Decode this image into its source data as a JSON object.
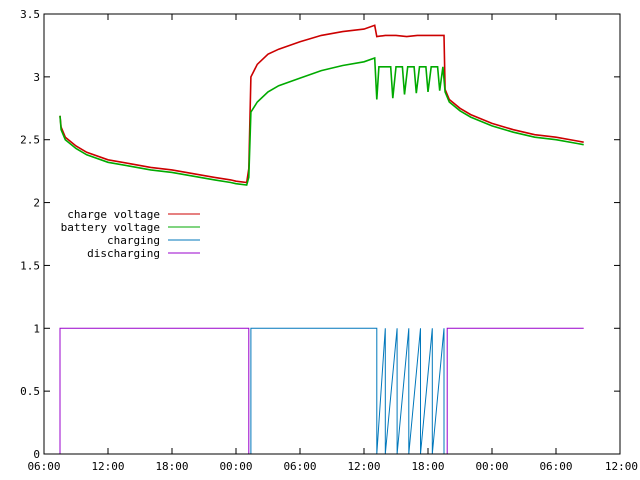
{
  "chart_data": {
    "type": "line",
    "title": "",
    "xlabel": "",
    "ylabel": "",
    "x_unit": "hours since first 06:00 tick",
    "xlim": [
      0,
      54
    ],
    "ylim": [
      0,
      3.5
    ],
    "grid": false,
    "legend_position": "left",
    "x_tick_labels": [
      "06:00",
      "12:00",
      "18:00",
      "00:00",
      "06:00",
      "12:00",
      "18:00",
      "00:00",
      "06:00",
      "12:00"
    ],
    "x_tick_values": [
      0,
      6,
      12,
      18,
      24,
      30,
      36,
      42,
      48,
      54
    ],
    "y_tick_labels": [
      "0",
      "0.5",
      "1",
      "1.5",
      "2",
      "2.5",
      "3",
      "3.5"
    ],
    "y_tick_values": [
      0,
      0.5,
      1,
      1.5,
      2,
      2.5,
      3,
      3.5
    ],
    "series": [
      {
        "name": "charge voltage",
        "color": "#cc0000",
        "x": [
          1.5,
          1.6,
          2.0,
          3.0,
          4.0,
          6.0,
          8.0,
          10.0,
          12.0,
          14.0,
          16.0,
          17.5,
          18.0,
          19.0,
          19.2,
          19.4,
          20.0,
          21.0,
          22.0,
          24.0,
          26.0,
          28.0,
          30.0,
          31.0,
          31.2,
          32.0,
          33.0,
          34.0,
          35.0,
          36.0,
          37.0,
          37.5,
          37.6,
          38.0,
          39.0,
          40.0,
          42.0,
          44.0,
          46.0,
          48.0,
          50.0,
          50.6
        ],
        "values": [
          2.69,
          2.6,
          2.52,
          2.45,
          2.4,
          2.34,
          2.31,
          2.28,
          2.26,
          2.23,
          2.2,
          2.18,
          2.17,
          2.16,
          2.27,
          3.0,
          3.1,
          3.18,
          3.22,
          3.28,
          3.33,
          3.36,
          3.38,
          3.41,
          3.32,
          3.33,
          3.33,
          3.32,
          3.33,
          3.33,
          3.33,
          3.33,
          2.9,
          2.82,
          2.75,
          2.7,
          2.63,
          2.58,
          2.54,
          2.52,
          2.49,
          2.48
        ]
      },
      {
        "name": "battery voltage",
        "color": "#00aa00",
        "x": [
          1.5,
          1.6,
          2.0,
          3.0,
          4.0,
          6.0,
          8.0,
          10.0,
          12.0,
          14.0,
          16.0,
          17.5,
          18.0,
          19.0,
          19.2,
          19.4,
          20.0,
          21.0,
          22.0,
          24.0,
          26.0,
          28.0,
          30.0,
          31.0,
          31.2,
          31.4,
          32.5,
          32.7,
          33.0,
          33.6,
          33.8,
          34.1,
          34.7,
          34.9,
          35.2,
          35.8,
          36.0,
          36.3,
          36.9,
          37.1,
          37.4,
          37.6,
          38.0,
          39.0,
          40.0,
          42.0,
          44.0,
          46.0,
          48.0,
          50.0,
          50.6
        ],
        "values": [
          2.69,
          2.58,
          2.5,
          2.43,
          2.38,
          2.32,
          2.29,
          2.26,
          2.24,
          2.21,
          2.18,
          2.16,
          2.15,
          2.14,
          2.2,
          2.72,
          2.8,
          2.88,
          2.93,
          2.99,
          3.05,
          3.09,
          3.12,
          3.15,
          2.82,
          3.08,
          3.08,
          2.83,
          3.08,
          3.08,
          2.86,
          3.08,
          3.08,
          2.87,
          3.08,
          3.08,
          2.88,
          3.08,
          3.08,
          2.89,
          3.08,
          2.88,
          2.8,
          2.73,
          2.68,
          2.61,
          2.56,
          2.52,
          2.5,
          2.47,
          2.46
        ]
      },
      {
        "name": "charging",
        "color": "#0077bb",
        "x": [
          19.4,
          19.4,
          31.2,
          31.2,
          32.0,
          32.0,
          33.1,
          33.1,
          34.2,
          34.2,
          35.3,
          35.3,
          36.4,
          36.4,
          37.5,
          37.5
        ],
        "values": [
          0,
          1,
          1,
          0,
          1,
          0,
          1,
          0,
          1,
          0,
          1,
          0,
          1,
          0,
          1,
          0
        ]
      },
      {
        "name": "discharging",
        "color": "#9900cc",
        "x": [
          1.5,
          1.5,
          19.2,
          19.2,
          37.8,
          37.8,
          50.6
        ],
        "values": [
          0,
          1,
          1,
          0,
          0,
          1,
          1
        ]
      }
    ]
  }
}
